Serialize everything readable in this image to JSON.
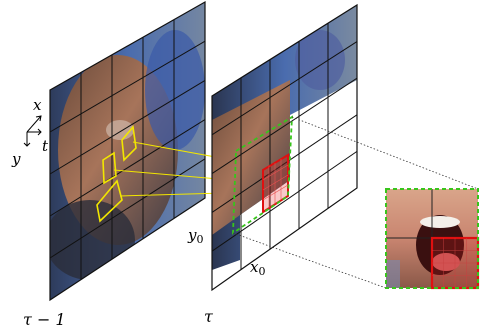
{
  "labels": {
    "prev_frame": "τ − 1",
    "curr_frame": "τ",
    "axis_x": "x",
    "axis_y": "y",
    "axis_t": "t",
    "y0_main": "y",
    "y0_sub": "0",
    "x0_main": "x",
    "x0_sub": "0"
  },
  "colors": {
    "highlight_yellow": "#f2e600",
    "patch_red": "#e01010",
    "window_green": "#38c41c",
    "grid_dark": "#111111",
    "grid_light": "#444444"
  },
  "grid": {
    "prev_frame_cols": 5,
    "prev_frame_rows": 5,
    "curr_frame_cols": 5,
    "curr_frame_rows": 5
  }
}
